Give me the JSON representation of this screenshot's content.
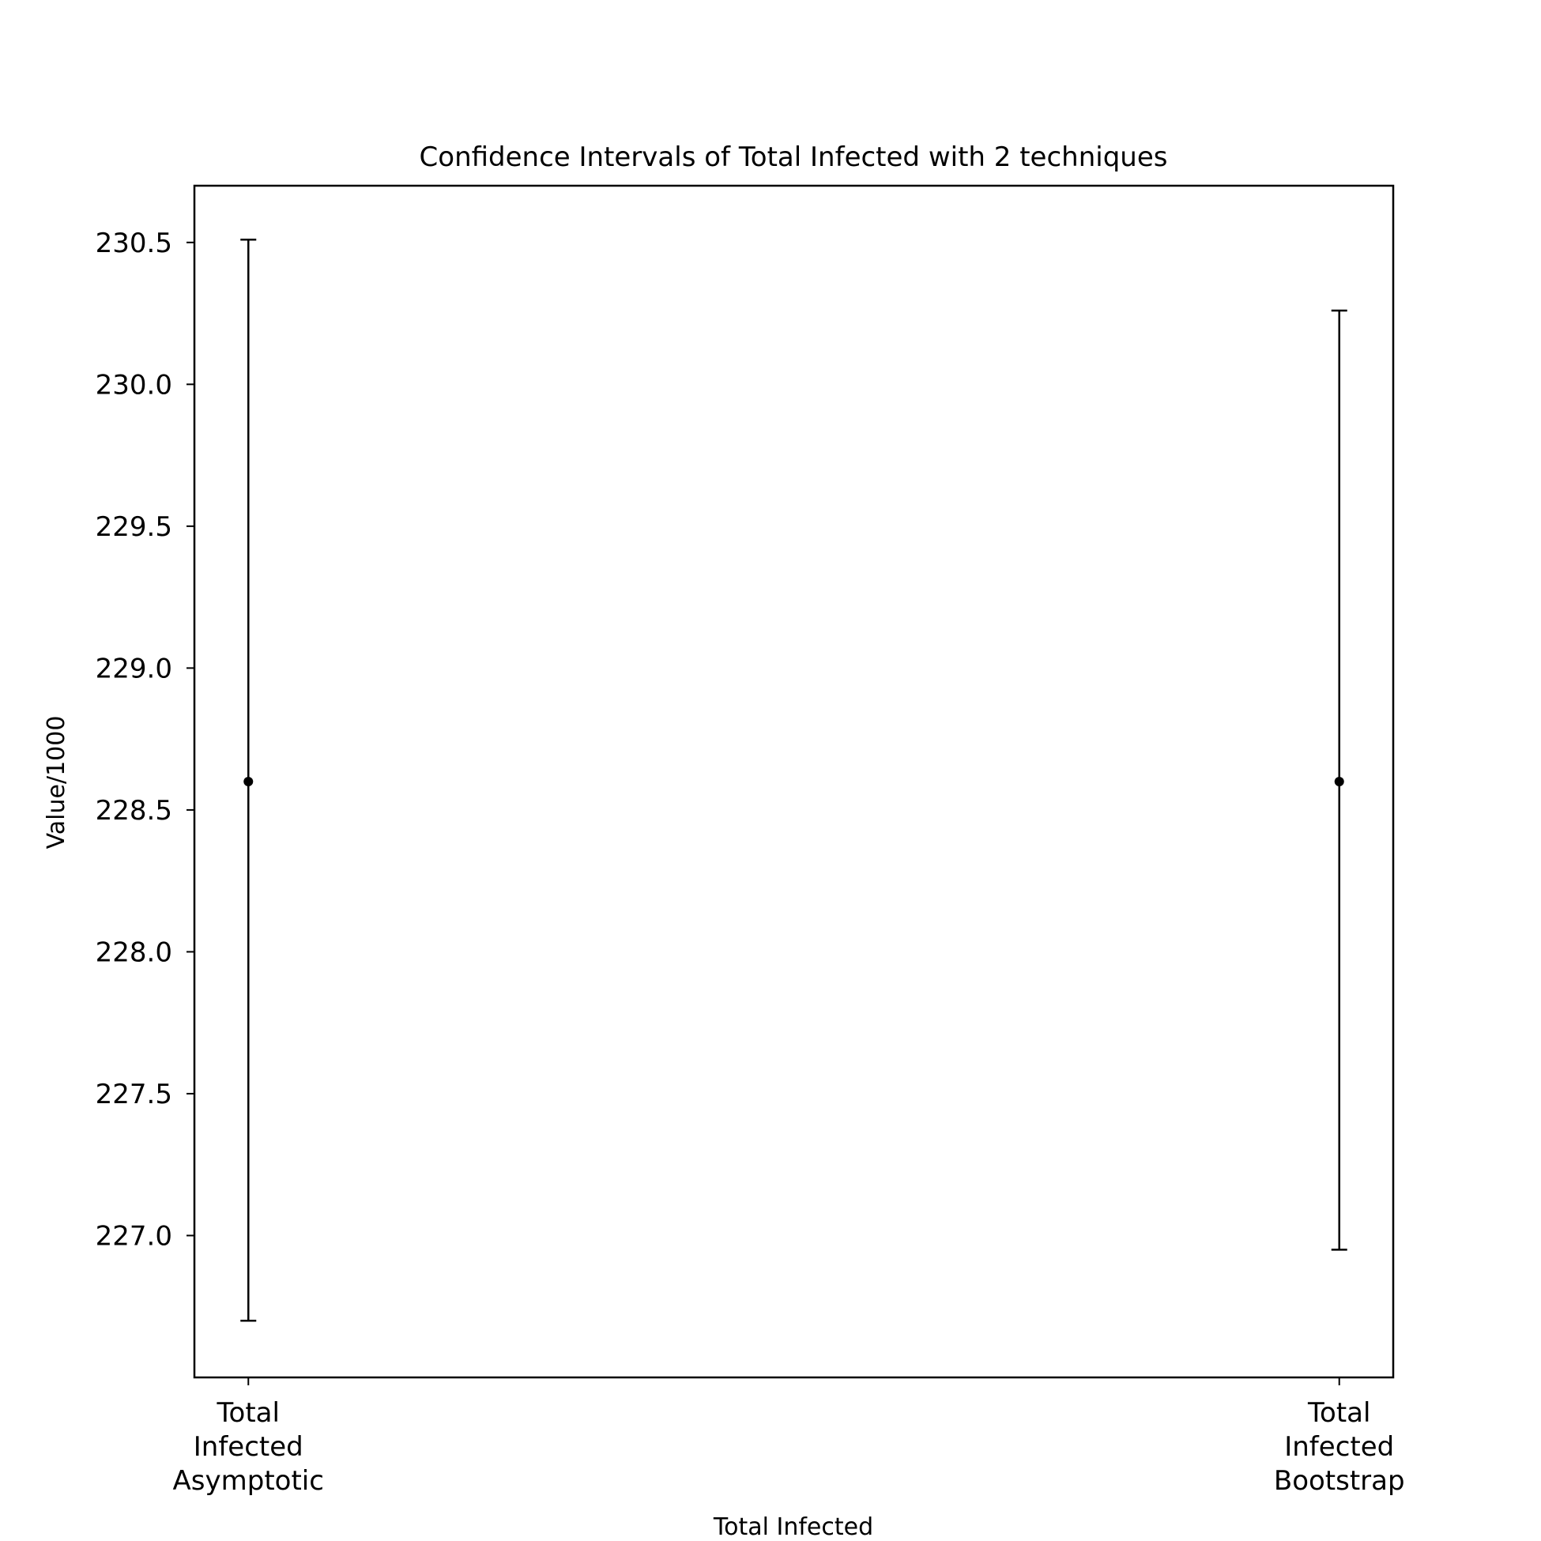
{
  "chart_data": {
    "type": "errorbar",
    "title": "Confidence Intervals of Total Infected with 2 techniques",
    "xlabel": "Total Infected",
    "ylabel": "Value/1000",
    "categories": [
      [
        "Total",
        "Infected",
        "Asymptotic"
      ],
      [
        "Total",
        "Infected",
        "Bootstrap"
      ]
    ],
    "points": [
      {
        "mean": 228.6,
        "lower": 226.7,
        "upper": 230.51
      },
      {
        "mean": 228.6,
        "lower": 226.95,
        "upper": 230.26
      }
    ],
    "ylim": [
      226.5,
      230.7
    ],
    "yticks": [
      227.0,
      227.5,
      228.0,
      228.5,
      229.0,
      229.5,
      230.0,
      230.5
    ],
    "ytick_labels": [
      "227.0",
      "227.5",
      "228.0",
      "228.5",
      "229.0",
      "229.5",
      "230.0",
      "230.5"
    ],
    "grid": false,
    "color": "#000000"
  }
}
